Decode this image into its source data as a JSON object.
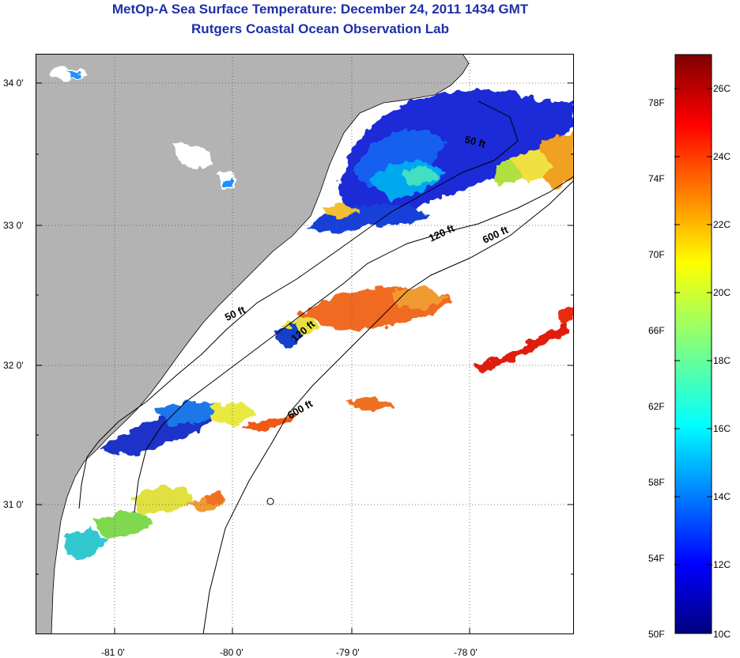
{
  "title_line1": "MetOp-A Sea Surface Temperature:  December 24, 2011 1434 GMT",
  "title_line2": "Rutgers Coastal Ocean Observation Lab",
  "x_ticks": [
    "-81 0'",
    "-80 0'",
    "-79 0'",
    "-78 0'"
  ],
  "y_ticks": [
    "34 0'",
    "33 0'",
    "32 0'",
    "31 0'"
  ],
  "contours": [
    "50 ft",
    "120 ft",
    "600 ft",
    "50 ft",
    "120 ft",
    "600 ft"
  ],
  "colorbar": {
    "fahrenheit": [
      "78F",
      "74F",
      "70F",
      "66F",
      "62F",
      "58F",
      "54F",
      "50F"
    ],
    "celsius": [
      "26C",
      "24C",
      "22C",
      "20C",
      "18C",
      "16C",
      "14C",
      "12C",
      "10C"
    ],
    "min_c": 10,
    "max_c": 27
  },
  "colors": {
    "land": "#b3b3b3",
    "title": "#1f2fa8"
  }
}
